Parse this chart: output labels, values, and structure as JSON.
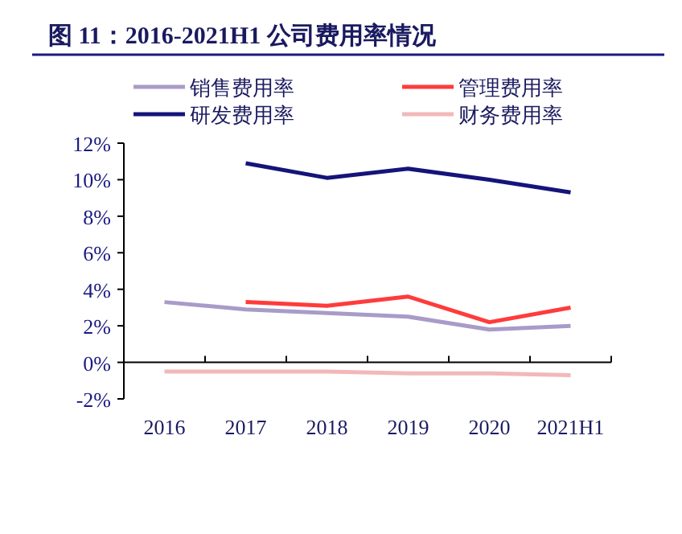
{
  "chart_data": {
    "type": "line",
    "title": "图 11：2016-2021H1 公司费用率情况",
    "categories": [
      "2016",
      "2017",
      "2018",
      "2019",
      "2020",
      "2021H1"
    ],
    "series": [
      {
        "name": "销售费用率",
        "color": "#a99bc8",
        "values": [
          3.3,
          2.9,
          2.7,
          2.5,
          1.8,
          2.0
        ]
      },
      {
        "name": "管理费用率",
        "color": "#ff3b3b",
        "values": [
          null,
          3.3,
          3.1,
          3.6,
          2.2,
          3.0
        ]
      },
      {
        "name": "研发费用率",
        "color": "#14147a",
        "values": [
          null,
          10.9,
          10.1,
          10.6,
          10.0,
          9.3
        ]
      },
      {
        "name": "财务费用率",
        "color": "#f2b8b8",
        "values": [
          -0.5,
          -0.5,
          -0.5,
          -0.6,
          -0.6,
          -0.7
        ]
      }
    ],
    "ylim": [
      -2,
      12
    ],
    "yticks": [
      {
        "value": -2,
        "label": "-2%"
      },
      {
        "value": 0,
        "label": "0%"
      },
      {
        "value": 2,
        "label": "2%"
      },
      {
        "value": 4,
        "label": "4%"
      },
      {
        "value": 6,
        "label": "6%"
      },
      {
        "value": 8,
        "label": "8%"
      },
      {
        "value": 10,
        "label": "10%"
      },
      {
        "value": 12,
        "label": "12%"
      }
    ],
    "legend": "top"
  }
}
